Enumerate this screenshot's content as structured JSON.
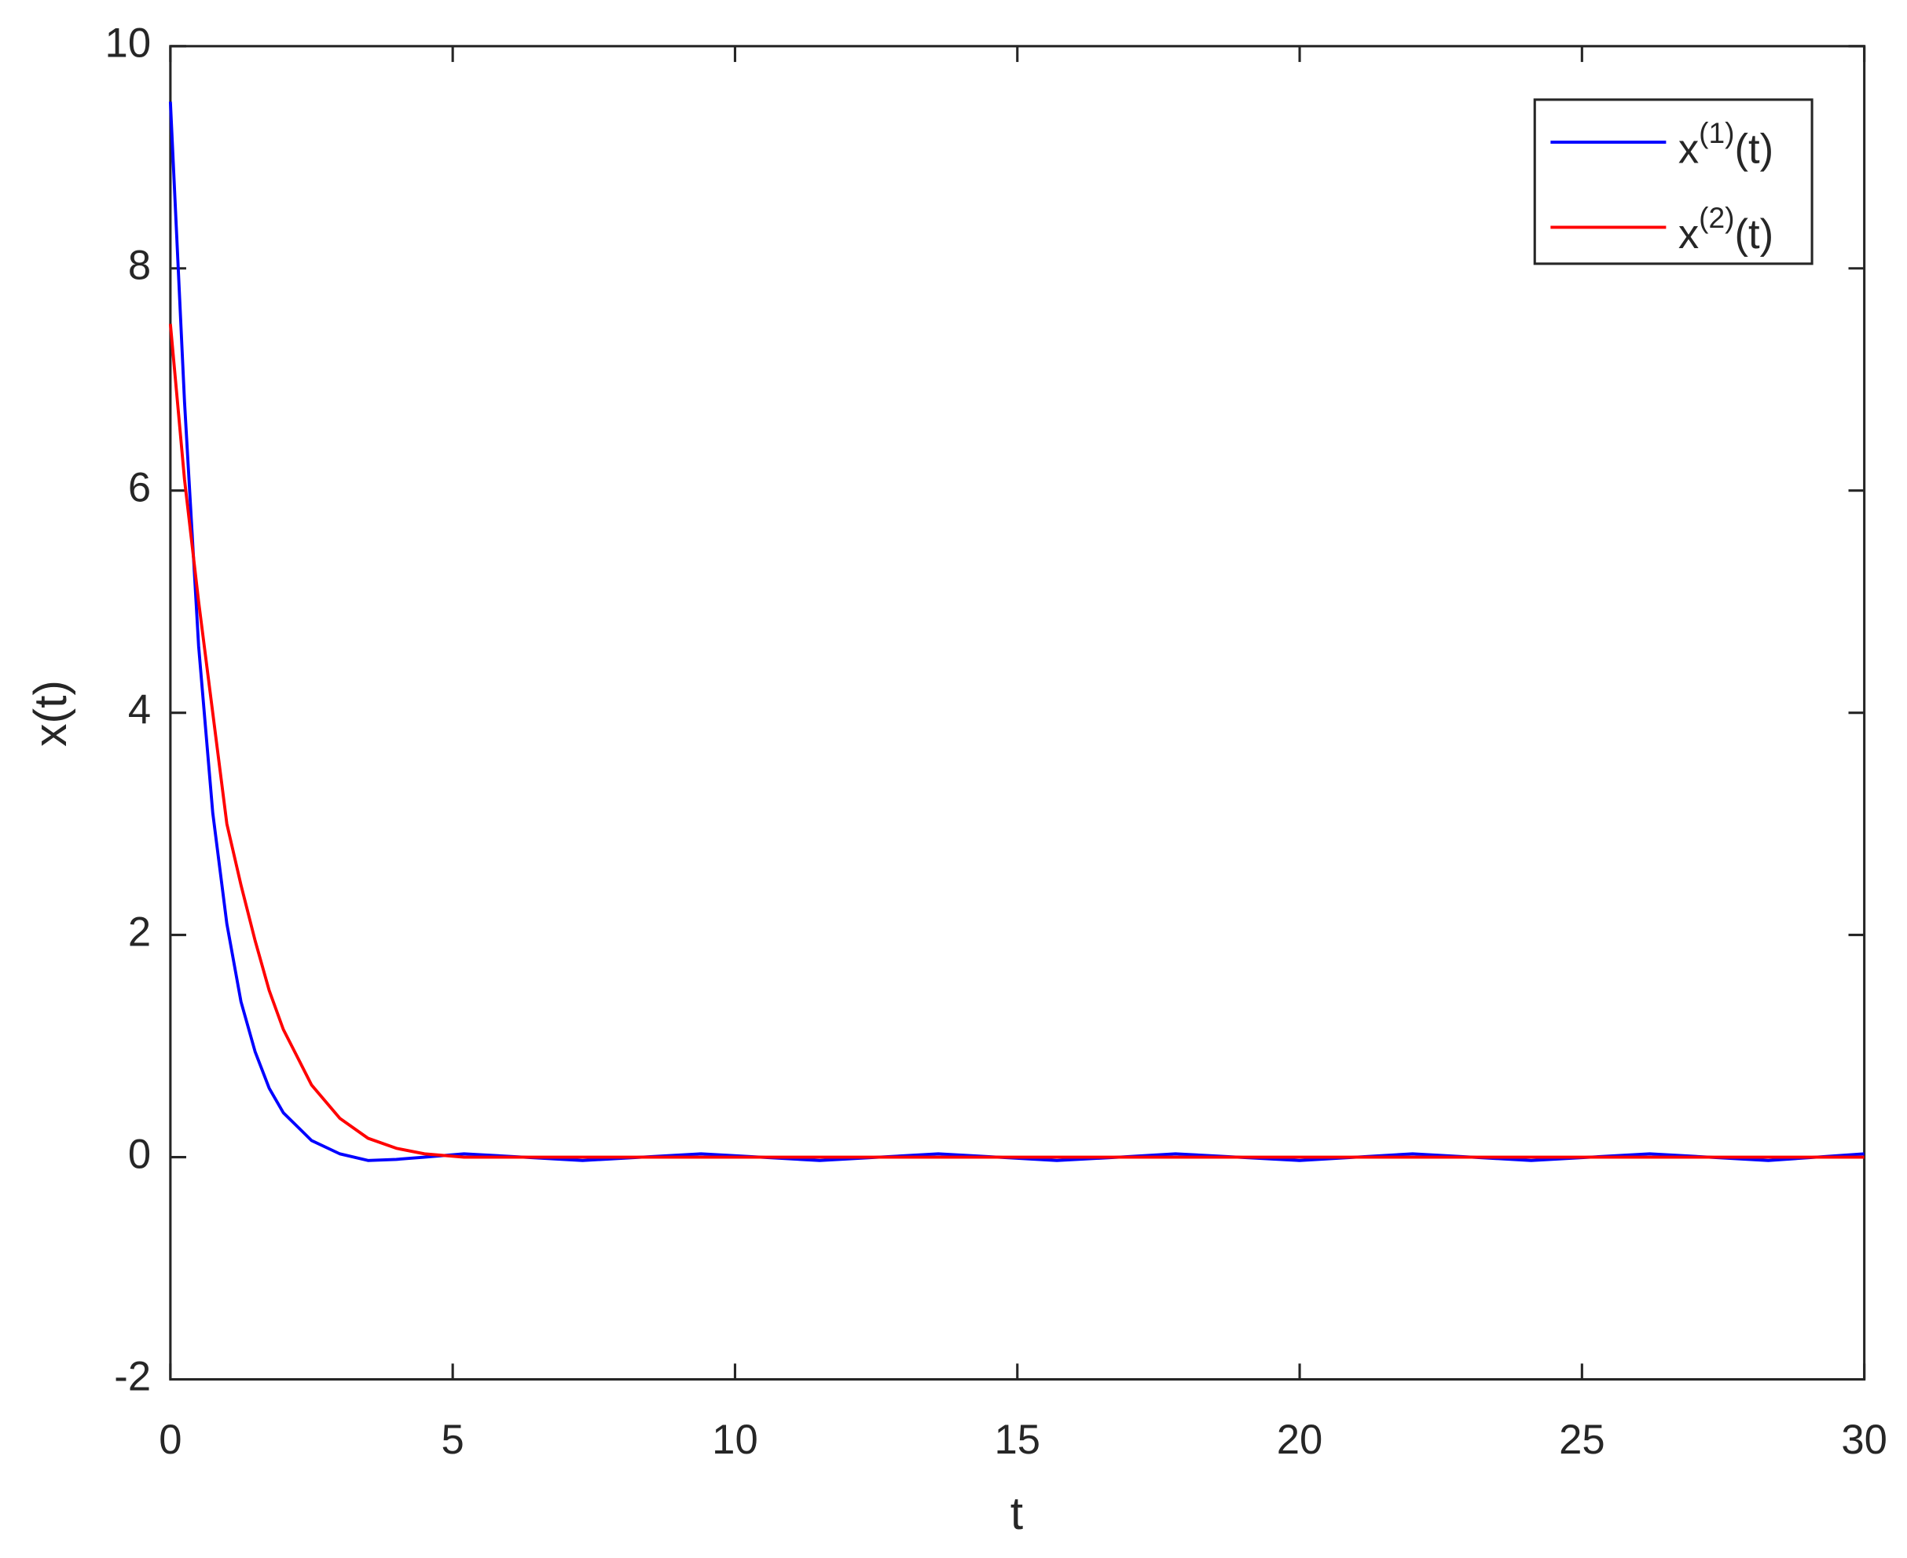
{
  "chart_data": {
    "type": "line",
    "x_label": "t",
    "y_label": "x(t)",
    "xlim": [
      0,
      30
    ],
    "ylim": [
      -2,
      10
    ],
    "xticks": [
      0,
      5,
      10,
      15,
      20,
      25,
      30
    ],
    "yticks": [
      -2,
      0,
      2,
      4,
      6,
      8,
      10
    ],
    "legend": "top-right",
    "x": [
      0,
      0.25,
      0.5,
      0.75,
      1,
      1.25,
      1.5,
      1.75,
      2,
      2.5,
      3,
      3.5,
      4,
      4.5,
      5.2,
      6.25,
      7.3,
      8.35,
      9.4,
      10.45,
      11.5,
      12.55,
      13.6,
      14.65,
      15.7,
      16.8,
      17.8,
      18.9,
      20,
      21,
      22,
      23.05,
      24.1,
      25.15,
      26.2,
      27.25,
      28.3,
      29.15,
      30
    ],
    "series": [
      {
        "name": "x(1)(t)",
        "color": "#0000ff",
        "values": [
          9.5,
          6.8,
          4.6,
          3.1,
          2.1,
          1.4,
          0.95,
          0.62,
          0.4,
          0.15,
          0.03,
          -0.03,
          -0.02,
          0,
          0.03,
          0,
          -0.03,
          0,
          0.03,
          0,
          -0.03,
          0,
          0.03,
          0,
          -0.03,
          0,
          0.03,
          0,
          -0.03,
          0,
          0.03,
          0,
          -0.03,
          0,
          0.03,
          0,
          -0.03,
          0,
          0.03
        ]
      },
      {
        "name": "x(2)(t)",
        "color": "#ff0000",
        "values": [
          7.5,
          6.1,
          5.0,
          4.0,
          3.0,
          2.45,
          1.95,
          1.5,
          1.15,
          0.65,
          0.35,
          0.17,
          0.08,
          0.03,
          0,
          0,
          0,
          0,
          0,
          0,
          0,
          0,
          0,
          0,
          0,
          0,
          0,
          0,
          0,
          0,
          0,
          0,
          0,
          0,
          0,
          0,
          0,
          0,
          0
        ]
      }
    ]
  }
}
